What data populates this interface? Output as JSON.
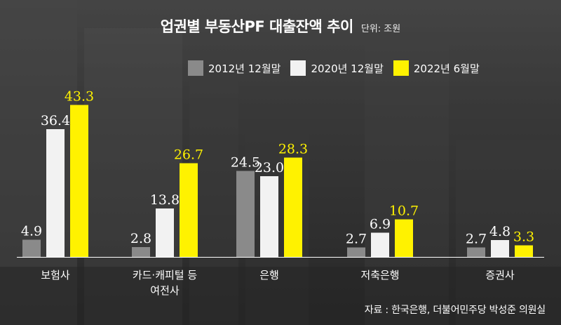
{
  "title": "업권별 부동산PF 대출잔액 추이",
  "unit": "단위: 조원",
  "source": "자료 : 한국은행, 더불어민주당 박성준 의원실",
  "colors": {
    "s2012": "#8a8a8a",
    "s2020": "#f2f2f2",
    "s2022": "#fff200"
  },
  "chart_data": {
    "type": "bar",
    "title": "업권별 부동산PF 대출잔액 추이",
    "unit": "단위: 조원",
    "categories": [
      [
        "보험사"
      ],
      [
        "카드·캐피털 등",
        "여전사"
      ],
      [
        "은행"
      ],
      [
        "저축은행"
      ],
      [
        "증권사"
      ]
    ],
    "series": [
      {
        "name": "2012년 12월말",
        "values": [
          4.9,
          2.8,
          24.5,
          2.7,
          2.7
        ]
      },
      {
        "name": "2020년 12월말",
        "values": [
          36.4,
          13.8,
          23.0,
          6.9,
          4.8
        ]
      },
      {
        "name": "2022년 6월말",
        "values": [
          43.3,
          26.7,
          28.3,
          10.7,
          3.3
        ]
      }
    ],
    "ylim": [
      0,
      50
    ],
    "grid": false,
    "legend": "top-right"
  }
}
